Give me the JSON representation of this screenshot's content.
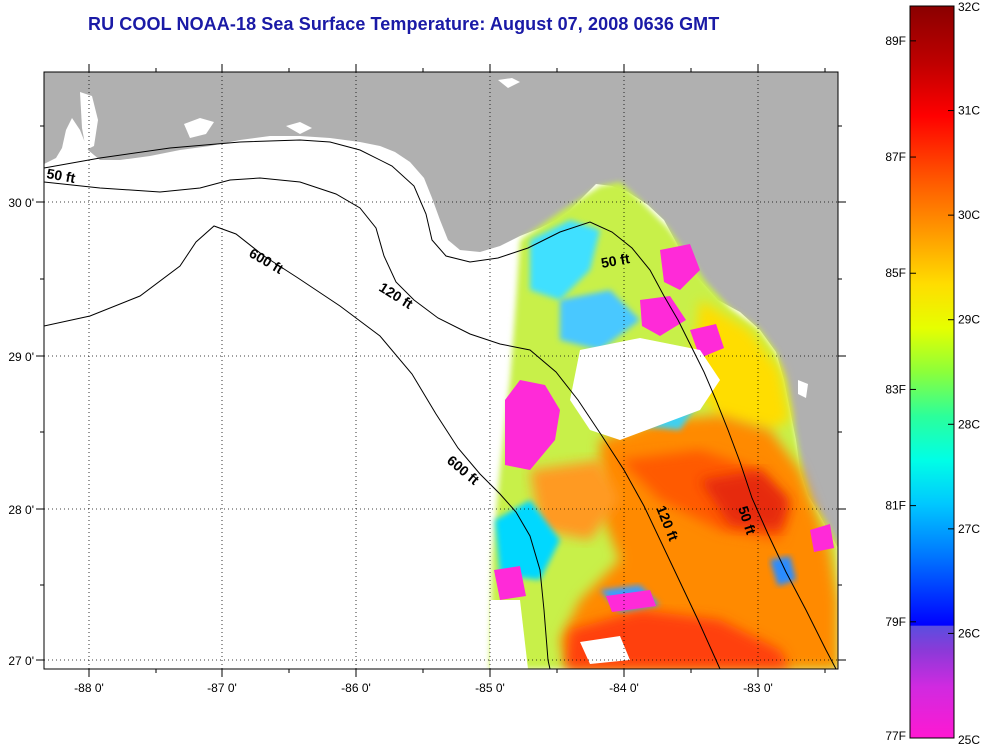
{
  "title": "RU COOL  NOAA-18  Sea Surface Temperature:  August 07, 2008 0636 GMT",
  "map": {
    "lon_ticks": [
      "-88 0'",
      "-87 0'",
      "-86 0'",
      "-85 0'",
      "-84 0'",
      "-83 0'"
    ],
    "lat_ticks": [
      "30 0'",
      "29 0'",
      "28 0'",
      "27 0'"
    ],
    "contour_labels": [
      "50 ft",
      "600 ft",
      "120 ft",
      "50 ft",
      "600 ft",
      "120 ft",
      "50 ft"
    ],
    "colors": {
      "land": "#b0b0b0",
      "water": "#ffffff",
      "title": "#1a1aa6"
    }
  },
  "colorbar": {
    "celsius_labels": [
      "32C",
      "31C",
      "30C",
      "29C",
      "28C",
      "27C",
      "26C",
      "25C"
    ],
    "fahrenheit_labels": [
      "89F",
      "87F",
      "85F",
      "83F",
      "81F",
      "79F",
      "77F"
    ],
    "celsius_values": [
      32,
      31,
      30,
      29,
      28,
      27,
      26,
      25
    ],
    "fahrenheit_values": [
      89,
      87,
      85,
      83,
      81,
      79,
      77
    ]
  }
}
